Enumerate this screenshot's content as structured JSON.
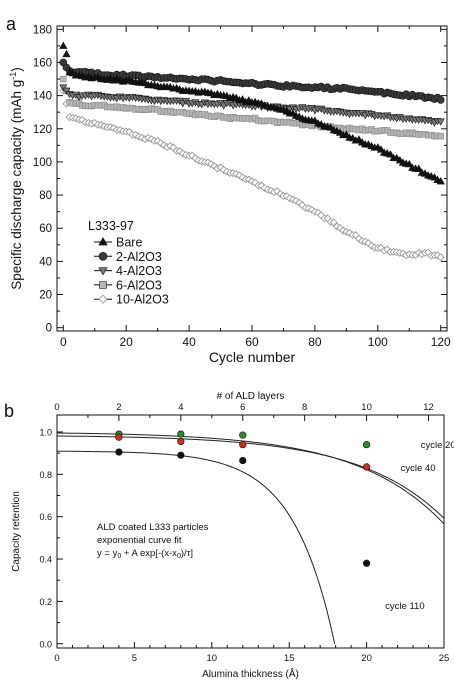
{
  "panels": {
    "a": {
      "letter": "a"
    },
    "b": {
      "letter": "b"
    }
  },
  "chart_data": [
    {
      "panel": "a",
      "type": "scatter",
      "title": "",
      "xlabel": "Cycle number",
      "ylabel_main": "Specific discharge capacity (mAh g",
      "ylabel_sup": "-1",
      "ylabel_end": ")",
      "xlim": [
        -2,
        122
      ],
      "ylim": [
        -2,
        182
      ],
      "xticks": [
        0,
        20,
        40,
        60,
        80,
        100,
        120
      ],
      "yticks": [
        0,
        20,
        40,
        60,
        80,
        100,
        120,
        140,
        160,
        180
      ],
      "minor_xtick_step": 10,
      "minor_ytick_step": 10,
      "grid": false,
      "legend": {
        "title": "L333-97",
        "placement": "left"
      },
      "series": [
        {
          "name": "Bare",
          "marker": "triangle",
          "color": "#111111",
          "points": [
            [
              0,
              170
            ],
            [
              1,
              165
            ],
            [
              2,
              154
            ],
            [
              5,
              152
            ],
            [
              10,
              151
            ],
            [
              15,
              150
            ],
            [
              20,
              149
            ],
            [
              30,
              146
            ],
            [
              40,
              143
            ],
            [
              50,
              140
            ],
            [
              60,
              136
            ],
            [
              70,
              131
            ],
            [
              80,
              124
            ],
            [
              90,
              116
            ],
            [
              100,
              108
            ],
            [
              110,
              98
            ],
            [
              118,
              90
            ],
            [
              120,
              88
            ]
          ]
        },
        {
          "name": "2-Al2O3",
          "marker": "circle",
          "color": "#3a3a3a",
          "points": [
            [
              0,
              160
            ],
            [
              1,
              157
            ],
            [
              2,
              155
            ],
            [
              5,
              154
            ],
            [
              10,
              153
            ],
            [
              20,
              152
            ],
            [
              30,
              151
            ],
            [
              40,
              150
            ],
            [
              50,
              149
            ],
            [
              60,
              147
            ],
            [
              70,
              146
            ],
            [
              80,
              145
            ],
            [
              90,
              144
            ],
            [
              100,
              142
            ],
            [
              110,
              140
            ],
            [
              120,
              138
            ]
          ]
        },
        {
          "name": "4-Al2O3",
          "marker": "triangle-down",
          "color": "#7a7a7a",
          "points": [
            [
              0,
              145
            ],
            [
              2,
              141
            ],
            [
              5,
              140
            ],
            [
              10,
              140
            ],
            [
              20,
              139
            ],
            [
              30,
              137
            ],
            [
              40,
              136
            ],
            [
              50,
              135
            ],
            [
              60,
              134
            ],
            [
              70,
              133
            ],
            [
              80,
              132
            ],
            [
              90,
              130
            ],
            [
              100,
              128
            ],
            [
              110,
              126
            ],
            [
              120,
              124
            ]
          ]
        },
        {
          "name": "6-Al2O3",
          "marker": "square",
          "color": "#b5b5b5",
          "points": [
            [
              0,
              150
            ],
            [
              2,
              136
            ],
            [
              5,
              135
            ],
            [
              10,
              134
            ],
            [
              20,
              133
            ],
            [
              30,
              131
            ],
            [
              40,
              129
            ],
            [
              50,
              127
            ],
            [
              60,
              126
            ],
            [
              70,
              124
            ],
            [
              80,
              122
            ],
            [
              90,
              120
            ],
            [
              100,
              119
            ],
            [
              110,
              117
            ],
            [
              120,
              115
            ]
          ]
        },
        {
          "name": "10-Al2O3",
          "marker": "diamond",
          "color": "#9a9a9a",
          "points": [
            [
              0,
              143
            ],
            [
              2,
              127
            ],
            [
              5,
              125
            ],
            [
              10,
              123
            ],
            [
              20,
              118
            ],
            [
              30,
              112
            ],
            [
              40,
              104
            ],
            [
              50,
              96
            ],
            [
              60,
              88
            ],
            [
              70,
              80
            ],
            [
              80,
              70
            ],
            [
              90,
              58
            ],
            [
              100,
              48
            ],
            [
              110,
              44
            ],
            [
              115,
              45
            ],
            [
              120,
              43
            ]
          ]
        }
      ],
      "legend_labels": [
        "Bare",
        "2-Al2O3",
        "4-Al2O3",
        "6-Al2O3",
        "10-Al2O3"
      ]
    },
    {
      "panel": "b",
      "type": "scatter",
      "title": "",
      "xlabel": "Alumina thickness (Å)",
      "x2label": "# of ALD layers",
      "ylabel": "Capacity retention",
      "xlim": [
        0,
        25
      ],
      "x2lim": [
        0,
        12.5
      ],
      "ylim": [
        -0.02,
        1.08
      ],
      "xticks": [
        0,
        5,
        10,
        15,
        20,
        25
      ],
      "x2ticks": [
        0,
        2,
        4,
        6,
        8,
        10,
        12
      ],
      "yticks": [
        0.0,
        0.2,
        0.4,
        0.6,
        0.8,
        1.0
      ],
      "ytick_labels": [
        "0.0",
        "0.2",
        "0.4",
        "0.6",
        "0.8",
        "1.0"
      ],
      "minor_xtick_step": 1,
      "minor_ytick_step": 0.1,
      "grid": false,
      "annotation": {
        "line1": "ALD coated L333 particles",
        "line2": "exponential curve fit",
        "eq_y": "y = y",
        "eq_sub0": "0",
        "eq_mid": " + A exp[-(x-x",
        "eq_sub1": "0",
        "eq_end": ")/τ]"
      },
      "series": [
        {
          "name": "cycle 20",
          "color": "#2e8b2e",
          "points": [
            [
              4,
              0.99
            ],
            [
              8,
              0.99
            ],
            [
              12,
              0.985
            ],
            [
              20,
              0.94
            ]
          ],
          "fit": {
            "y0": 1.0,
            "A": -0.005,
            "tau": 5.6
          }
        },
        {
          "name": "cycle 40",
          "color": "#d42a1f",
          "points": [
            [
              4,
              0.975
            ],
            [
              8,
              0.955
            ],
            [
              12,
              0.94
            ],
            [
              20,
              0.835
            ]
          ],
          "fit": {
            "y0": 0.985,
            "A": -0.004,
            "tau": 5.45
          }
        },
        {
          "name": "cycle 110",
          "color": "#111111",
          "points": [
            [
              4,
              0.905
            ],
            [
              8,
              0.89
            ],
            [
              12,
              0.865
            ],
            [
              20,
              0.38
            ]
          ],
          "fit": {
            "y0": 0.91,
            "A": -0.0011,
            "tau": 2.67
          }
        }
      ]
    }
  ]
}
